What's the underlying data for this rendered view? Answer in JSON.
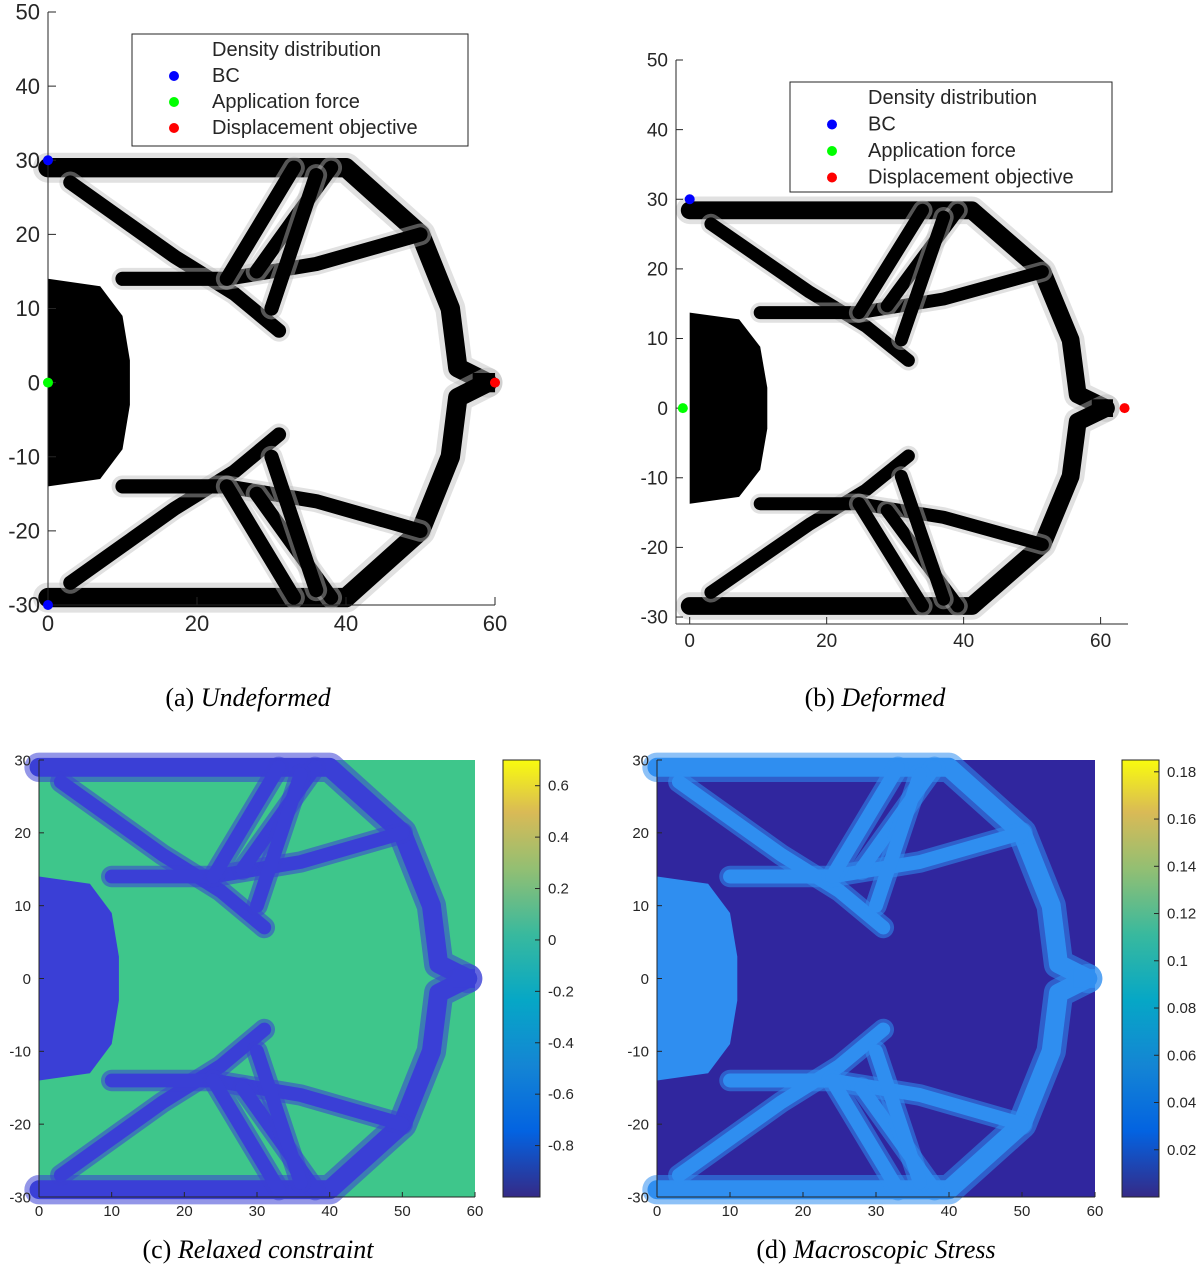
{
  "chart_data": [
    {
      "type": "scatter",
      "caption_label": "(a)",
      "caption_title": "Undeformed",
      "xlim": [
        0,
        60
      ],
      "ylim": [
        -30,
        50
      ],
      "xticks": [
        0,
        20,
        40,
        60
      ],
      "yticks": [
        -30,
        -20,
        -10,
        0,
        10,
        20,
        30,
        40,
        50
      ],
      "legend_title": "Density distribution",
      "legend_position": "top-right",
      "series": [
        {
          "name": "BC",
          "color": "#0000ff",
          "points": [
            [
              0,
              30
            ],
            [
              0,
              -30
            ]
          ]
        },
        {
          "name": "Application force",
          "color": "#00ff00",
          "points": [
            [
              0,
              0
            ]
          ]
        },
        {
          "name": "Displacement objective",
          "color": "#ff0000",
          "points": [
            [
              60,
              0
            ]
          ]
        }
      ]
    },
    {
      "type": "scatter",
      "caption_label": "(b)",
      "caption_title": "Deformed",
      "xlim": [
        -2,
        64
      ],
      "ylim": [
        -31,
        50
      ],
      "xticks": [
        0,
        20,
        40,
        60
      ],
      "yticks": [
        -30,
        -20,
        -10,
        0,
        10,
        20,
        30,
        40,
        50
      ],
      "legend_title": "Density distribution",
      "legend_position": "top-right",
      "series": [
        {
          "name": "BC",
          "color": "#0000ff",
          "points": [
            [
              0,
              30
            ]
          ]
        },
        {
          "name": "Application force",
          "color": "#00ff00",
          "points": [
            [
              -1,
              0
            ]
          ]
        },
        {
          "name": "Displacement objective",
          "color": "#ff0000",
          "points": [
            [
              63.5,
              0
            ]
          ]
        }
      ]
    },
    {
      "type": "heatmap",
      "caption_label": "(c)",
      "caption_title": "Relaxed constraint",
      "xlim": [
        0,
        60
      ],
      "ylim": [
        -30,
        30
      ],
      "xticks": [
        0,
        10,
        20,
        30,
        40,
        50,
        60
      ],
      "yticks": [
        -30,
        -20,
        -10,
        0,
        10,
        20,
        30
      ],
      "background_color": "#3ec68b",
      "structure_color": "#3a3fd6",
      "colorbar": {
        "range": [
          -1,
          0.7
        ],
        "ticks": [
          -0.8,
          -0.6,
          -0.4,
          -0.2,
          0,
          0.2,
          0.4,
          0.6
        ]
      }
    },
    {
      "type": "heatmap",
      "caption_label": "(d)",
      "caption_title": "Macroscopic Stress",
      "xlim": [
        0,
        60
      ],
      "ylim": [
        -30,
        30
      ],
      "xticks": [
        0,
        10,
        20,
        30,
        40,
        50,
        60
      ],
      "yticks": [
        -30,
        -20,
        -10,
        0,
        10,
        20,
        30
      ],
      "background_color": "#30269e",
      "structure_color": "#2f8ef0",
      "colorbar": {
        "range": [
          0,
          0.185
        ],
        "ticks": [
          0.02,
          0.04,
          0.06,
          0.08,
          0.1,
          0.12,
          0.14,
          0.16,
          0.18
        ]
      }
    }
  ]
}
